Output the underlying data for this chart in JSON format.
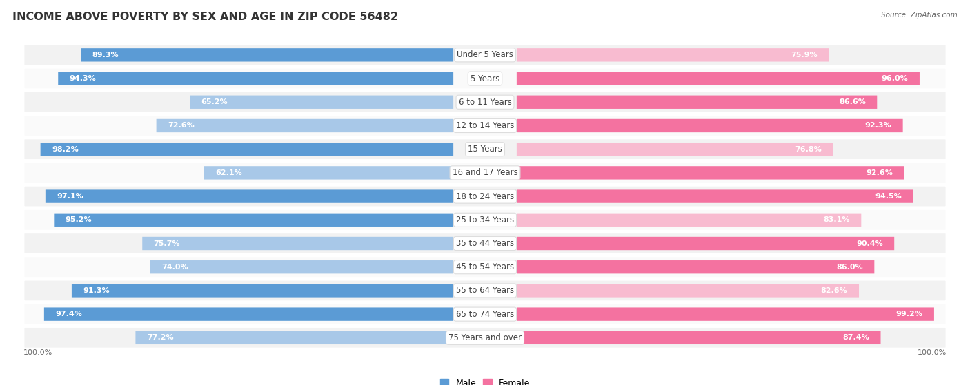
{
  "title": "INCOME ABOVE POVERTY BY SEX AND AGE IN ZIP CODE 56482",
  "source": "Source: ZipAtlas.com",
  "categories": [
    "Under 5 Years",
    "5 Years",
    "6 to 11 Years",
    "12 to 14 Years",
    "15 Years",
    "16 and 17 Years",
    "18 to 24 Years",
    "25 to 34 Years",
    "35 to 44 Years",
    "45 to 54 Years",
    "55 to 64 Years",
    "65 to 74 Years",
    "75 Years and over"
  ],
  "male_values": [
    89.3,
    94.3,
    65.2,
    72.6,
    98.2,
    62.1,
    97.1,
    95.2,
    75.7,
    74.0,
    91.3,
    97.4,
    77.2
  ],
  "female_values": [
    75.9,
    96.0,
    86.6,
    92.3,
    76.8,
    92.6,
    94.5,
    83.1,
    90.4,
    86.0,
    82.6,
    99.2,
    87.4
  ],
  "male_color_dark": "#5B9BD5",
  "male_color_light": "#A8C8E8",
  "female_color_dark": "#F472A0",
  "female_color_light": "#F8BBD0",
  "row_bg_even": "#F2F2F2",
  "row_bg_odd": "#FAFAFA",
  "title_fontsize": 11.5,
  "label_fontsize": 8.5,
  "value_fontsize": 8.0,
  "source_fontsize": 7.5,
  "legend_fontsize": 9,
  "axis_label_fontsize": 8,
  "male_threshold": 85,
  "female_threshold": 85
}
